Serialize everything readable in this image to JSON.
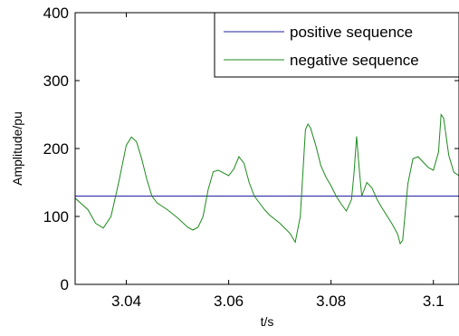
{
  "chart_data": {
    "type": "line",
    "title": "",
    "xlabel": "t/s",
    "ylabel": "Amplitude/pu",
    "xlim": [
      3.03,
      3.105
    ],
    "ylim": [
      0,
      400
    ],
    "x_ticks": [
      3.04,
      3.06,
      3.08,
      3.1
    ],
    "x_tick_labels": [
      "3.04",
      "3.06",
      "3.08",
      "3.1"
    ],
    "y_ticks": [
      0,
      100,
      200,
      300,
      400
    ],
    "y_tick_labels": [
      "0",
      "100",
      "200",
      "300",
      "400"
    ],
    "grid": false,
    "legend_position": "top-right",
    "series": [
      {
        "name": "positive sequence",
        "color": "#2020a0",
        "x": [
          3.03,
          3.105
        ],
        "y": [
          130,
          130
        ]
      },
      {
        "name": "negative sequence",
        "color": "#1e8a1e",
        "x": [
          3.03,
          3.0325,
          3.034,
          3.0355,
          3.037,
          3.0385,
          3.04,
          3.041,
          3.042,
          3.043,
          3.044,
          3.045,
          3.046,
          3.048,
          3.05,
          3.052,
          3.053,
          3.054,
          3.055,
          3.056,
          3.057,
          3.058,
          3.06,
          3.061,
          3.062,
          3.063,
          3.064,
          3.065,
          3.066,
          3.067,
          3.068,
          3.07,
          3.072,
          3.073,
          3.074,
          3.075,
          3.0755,
          3.076,
          3.077,
          3.078,
          3.079,
          3.08,
          3.081,
          3.082,
          3.083,
          3.084,
          3.0845,
          3.085,
          3.0855,
          3.086,
          3.087,
          3.088,
          3.089,
          3.09,
          3.091,
          3.092,
          3.093,
          3.0935,
          3.094,
          3.095,
          3.096,
          3.097,
          3.098,
          3.099,
          3.1,
          3.101,
          3.1015,
          3.102,
          3.103,
          3.104,
          3.105
        ],
        "y": [
          127,
          110,
          90,
          83,
          100,
          150,
          205,
          217,
          210,
          185,
          155,
          130,
          120,
          110,
          98,
          84,
          80,
          84,
          100,
          140,
          166,
          168,
          160,
          170,
          188,
          178,
          150,
          130,
          120,
          110,
          102,
          90,
          75,
          62,
          100,
          228,
          236,
          230,
          205,
          175,
          158,
          145,
          130,
          118,
          108,
          125,
          165,
          218,
          170,
          130,
          150,
          142,
          125,
          112,
          100,
          88,
          74,
          60,
          65,
          148,
          185,
          188,
          180,
          172,
          168,
          195,
          250,
          245,
          190,
          165,
          160
        ]
      }
    ]
  }
}
